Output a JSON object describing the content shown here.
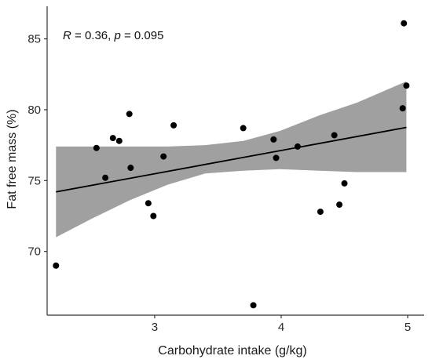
{
  "chart_data": {
    "type": "scatter",
    "xlabel": "Carbohydrate intake (g/kg)",
    "ylabel": "Fat free mass (%)",
    "annotation": {
      "r_symbol": "R",
      "r_text": " = 0.36, ",
      "p_symbol": "p",
      "p_text": " = 0.095"
    },
    "xlim": [
      2.15,
      5.13
    ],
    "ylim": [
      65.5,
      87.3
    ],
    "xticks": [
      3,
      4,
      5
    ],
    "yticks": [
      70,
      75,
      80,
      85
    ],
    "grid": false,
    "points": [
      {
        "x": 2.22,
        "y": 69.0
      },
      {
        "x": 2.54,
        "y": 77.3
      },
      {
        "x": 2.61,
        "y": 75.2
      },
      {
        "x": 2.67,
        "y": 78.0
      },
      {
        "x": 2.72,
        "y": 77.8
      },
      {
        "x": 2.8,
        "y": 79.7
      },
      {
        "x": 2.81,
        "y": 75.9
      },
      {
        "x": 2.95,
        "y": 73.4
      },
      {
        "x": 2.99,
        "y": 72.5
      },
      {
        "x": 3.07,
        "y": 76.7
      },
      {
        "x": 3.15,
        "y": 78.9
      },
      {
        "x": 3.7,
        "y": 78.7
      },
      {
        "x": 3.78,
        "y": 66.2
      },
      {
        "x": 3.94,
        "y": 77.9
      },
      {
        "x": 3.96,
        "y": 76.6
      },
      {
        "x": 4.13,
        "y": 77.4
      },
      {
        "x": 4.31,
        "y": 72.8
      },
      {
        "x": 4.42,
        "y": 78.2
      },
      {
        "x": 4.46,
        "y": 73.3
      },
      {
        "x": 4.5,
        "y": 74.8
      },
      {
        "x": 4.96,
        "y": 80.1
      },
      {
        "x": 4.97,
        "y": 86.1
      },
      {
        "x": 4.99,
        "y": 81.7
      }
    ],
    "regression": {
      "x": [
        2.22,
        4.99
      ],
      "y": [
        74.2,
        78.75
      ]
    },
    "confidence_band": {
      "x": [
        2.22,
        2.5,
        2.8,
        3.1,
        3.4,
        3.7,
        3.99,
        4.3,
        4.6,
        4.99
      ],
      "lower": [
        71.0,
        72.3,
        73.6,
        74.7,
        75.5,
        75.7,
        75.8,
        75.7,
        75.6,
        75.6
      ],
      "upper": [
        77.4,
        77.4,
        77.4,
        77.4,
        77.5,
        77.8,
        78.5,
        79.6,
        80.5,
        82.0
      ]
    },
    "colors": {
      "points": "#000000",
      "line": "#000000",
      "band": "#a0a0a0",
      "axis": "#333333"
    }
  }
}
